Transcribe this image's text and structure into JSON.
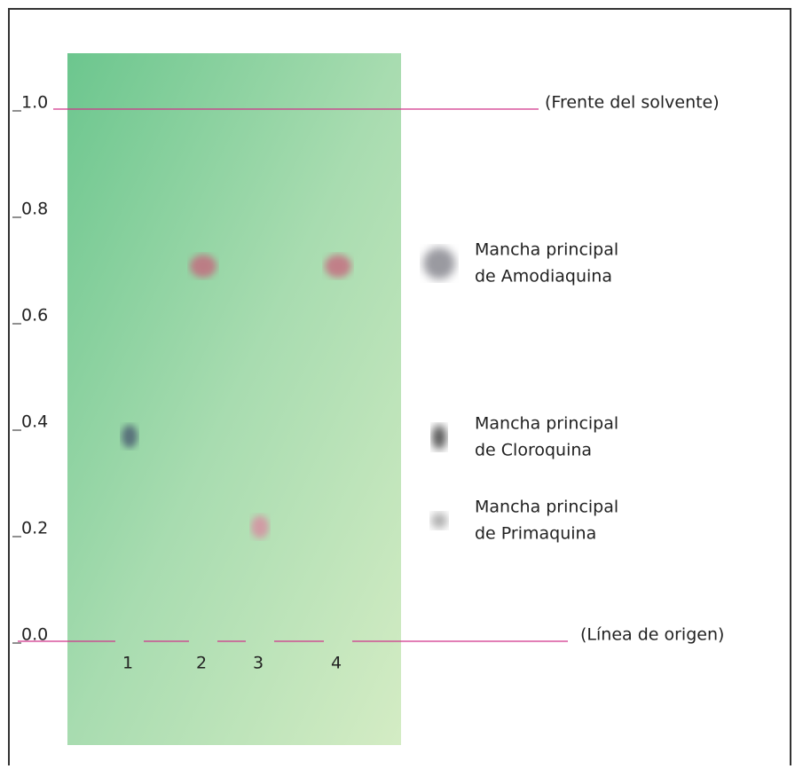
{
  "scale": {
    "ticks": [
      {
        "value": 1,
        "label": "1.0"
      },
      {
        "value": 0.8,
        "label": "0.8"
      },
      {
        "value": 0.6,
        "label": "0.6"
      },
      {
        "value": 0.4,
        "label": "0.4"
      },
      {
        "value": 0.2,
        "label": "0.2"
      },
      {
        "value": 0,
        "label": "0.0"
      }
    ]
  },
  "solvent_front_label": "(Frente del solvente)",
  "origin_label": "(Línea de origen)",
  "lanes": [
    {
      "label": "1",
      "spots": [
        {
          "rf": 0.38,
          "kind": "cloroquina"
        }
      ]
    },
    {
      "label": "2",
      "spots": [
        {
          "rf": 0.7,
          "kind": "amodiaquina"
        }
      ]
    },
    {
      "label": "3",
      "spots": [
        {
          "rf": 0.21,
          "kind": "primaquina"
        }
      ]
    },
    {
      "label": "4",
      "spots": [
        {
          "rf": 0.7,
          "kind": "amodiaquina"
        }
      ]
    }
  ],
  "legend": [
    {
      "line1": "Mancha principal",
      "line2": "de Amodiaquina"
    },
    {
      "line1": "Mancha principal",
      "line2": "de Cloroquina"
    },
    {
      "line1": "Mancha principal",
      "line2": "de Primaquina"
    }
  ]
}
